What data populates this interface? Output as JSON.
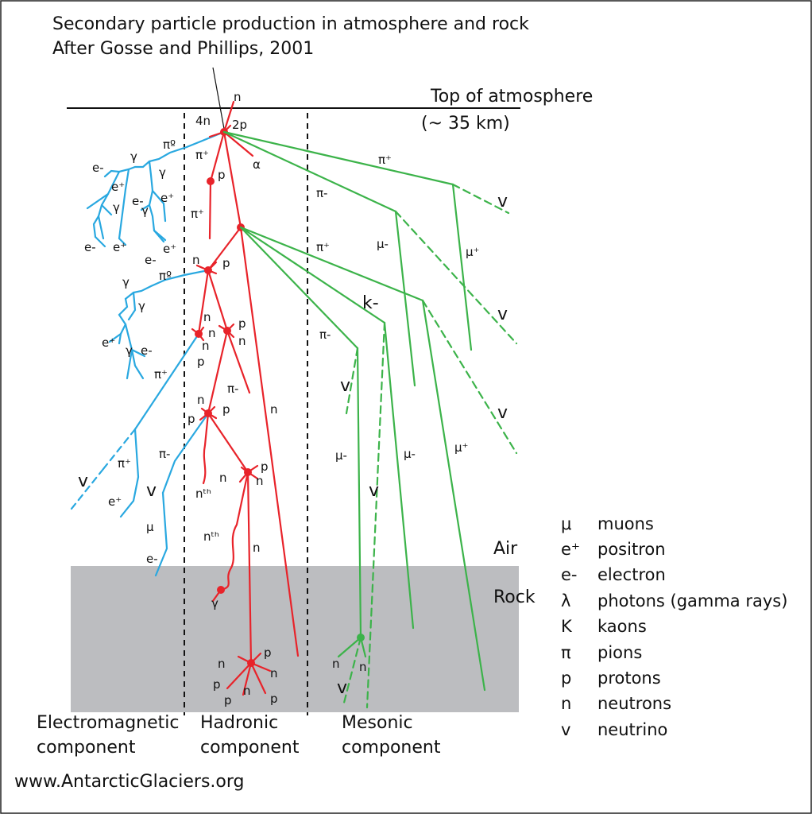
{
  "title_line1": "Secondary particle production in atmosphere and rock",
  "title_line2": "After Gosse and Phillips, 2001",
  "top_atmosphere": "Top of atmosphere",
  "top_altitude": "(~ 35 km)",
  "air_label": "Air",
  "rock_label": "Rock",
  "components": {
    "em_line1": "Electromagnetic",
    "em_line2": "component",
    "had_line1": "Hadronic",
    "had_line2": "component",
    "mes_line1": "Mesonic",
    "mes_line2": "component"
  },
  "website": "www.AntarcticGlaciers.org",
  "legend": [
    {
      "symbol": "μ",
      "name": "muons"
    },
    {
      "symbol": "e⁺",
      "name": "positron"
    },
    {
      "symbol": "e-",
      "name": "electron"
    },
    {
      "symbol": "λ",
      "name": "photons (gamma rays)"
    },
    {
      "symbol": "K",
      "name": "kaons"
    },
    {
      "symbol": "π",
      "name": "pions"
    },
    {
      "symbol": "p",
      "name": "protons"
    },
    {
      "symbol": "n",
      "name": "neutrons"
    },
    {
      "symbol": "v",
      "name": "neutrino"
    }
  ],
  "particle_labels": {
    "n": "n",
    "p": "p",
    "n4": "4n",
    "p2": "2p",
    "alpha": "α",
    "pi0": "πº",
    "pi_plus": "π⁺",
    "pi_minus": "π-",
    "gamma": "γ",
    "e_plus": "e⁺",
    "e_minus": "e-",
    "nu": "v",
    "mu": "μ",
    "mu_minus": "μ-",
    "mu_plus": "μ⁺",
    "k_minus": "k-",
    "nth": "nᵗʰ"
  },
  "colors": {
    "electromagnetic": "#29a8e0",
    "hadronic": "#e8232a",
    "mesonic": "#3cb34a",
    "rock": "#bcbdc0",
    "text": "#111111"
  }
}
